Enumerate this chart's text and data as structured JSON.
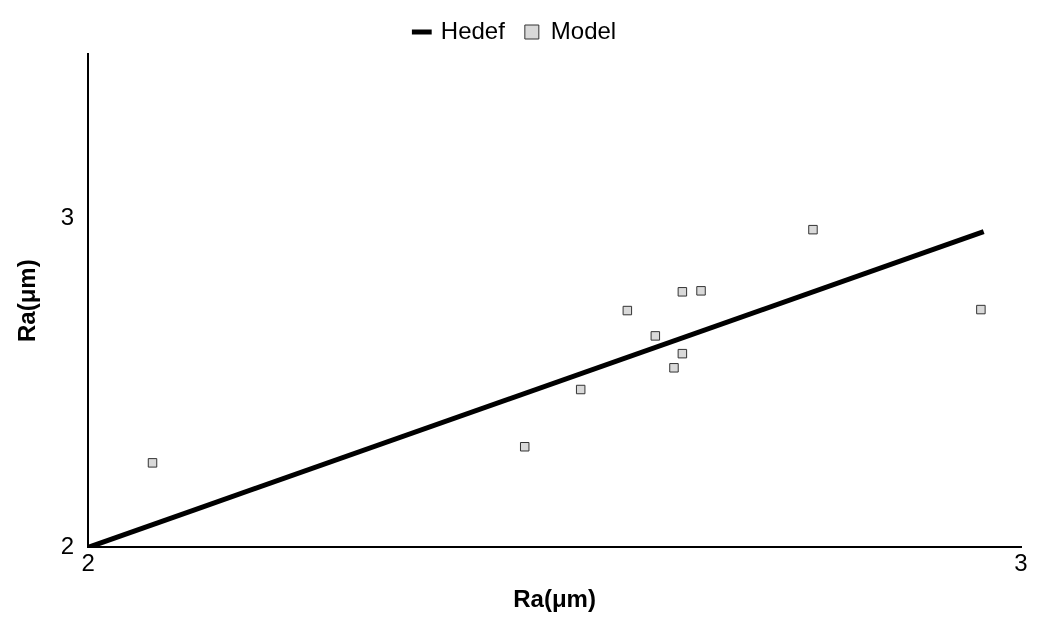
{
  "chart_data": {
    "type": "scatter",
    "xlabel": "Ra(μm)",
    "ylabel": "Ra(μm)",
    "xlim": [
      2,
      3
    ],
    "xticks": [
      2,
      3
    ],
    "ylim": [
      2,
      3.5
    ],
    "yticks": [
      2,
      3
    ],
    "grid": false,
    "legend": "top",
    "series": [
      {
        "name": "Hedef",
        "type": "line",
        "color": "#000000",
        "marker": "none",
        "line_style": "solid",
        "x": [
          2,
          2.96
        ],
        "values": [
          2,
          2.96
        ]
      },
      {
        "name": "Model",
        "color": "#d9d9d9",
        "marker": "square",
        "x": [
          2.069,
          2.468,
          2.528,
          2.578,
          2.608,
          2.628,
          2.637,
          2.637,
          2.657,
          2.777,
          2.957
        ],
        "values": [
          2.257,
          2.306,
          2.48,
          2.72,
          2.643,
          2.546,
          2.777,
          2.589,
          2.78,
          2.966,
          2.723
        ]
      }
    ]
  }
}
